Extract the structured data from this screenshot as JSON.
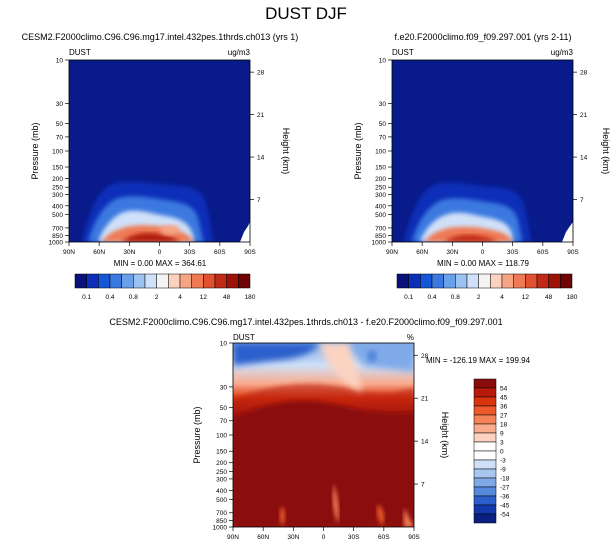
{
  "title": "DUST DJF",
  "chart_data": [
    {
      "type": "heatmap",
      "title": "CESM2.F2000climo.C96.C96.mg17.intel.432pes.1thrds.ch013 (yrs 1)",
      "left_string": "DUST",
      "right_string": "ug/m3",
      "ylabel": "Pressure (mb)",
      "ylabel_right": "Height (km)",
      "x_ticks": [
        "90N",
        "60N",
        "30N",
        "0",
        "30S",
        "60S",
        "90S"
      ],
      "y_ticks": [
        "10",
        "30",
        "50",
        "70",
        "100",
        "150",
        "200",
        "250",
        "300",
        "400",
        "500",
        "700",
        "850",
        "1000"
      ],
      "y_ticks_right": [
        "28",
        "21",
        "14",
        "7"
      ],
      "stats": "MIN =   0.00  MAX = 364.61",
      "min": 0.0,
      "max": 364.61,
      "colorbar_labels": [
        "0.1",
        "0.4",
        "0.8",
        "2",
        "4",
        "12",
        "48",
        "180"
      ],
      "colorbar_colors": [
        "#08127a",
        "#0b2fb8",
        "#1556d6",
        "#3a79e0",
        "#6aa0ea",
        "#9cc2f2",
        "#cfe0f8",
        "#f4f4f4",
        "#fbd2c0",
        "#f6a584",
        "#ef7a55",
        "#e2512f",
        "#c22a18",
        "#9b1208",
        "#6e0404"
      ]
    },
    {
      "type": "heatmap",
      "title": "f.e20.F2000climo.f09_f09.297.001 (yrs 2-11)",
      "left_string": "DUST",
      "right_string": "ug/m3",
      "ylabel": "Pressure (mb)",
      "ylabel_right": "Height (km)",
      "x_ticks": [
        "90N",
        "60N",
        "30N",
        "0",
        "30S",
        "60S",
        "90S"
      ],
      "y_ticks": [
        "10",
        "30",
        "50",
        "70",
        "100",
        "150",
        "200",
        "250",
        "300",
        "400",
        "500",
        "700",
        "850",
        "1000"
      ],
      "y_ticks_right": [
        "28",
        "21",
        "14",
        "7"
      ],
      "stats": "MIN =   0.00  MAX = 118.79",
      "min": 0.0,
      "max": 118.79,
      "colorbar_labels": [
        "0.1",
        "0.4",
        "0.8",
        "2",
        "4",
        "12",
        "48",
        "180"
      ],
      "colorbar_colors": [
        "#08127a",
        "#0b2fb8",
        "#1556d6",
        "#3a79e0",
        "#6aa0ea",
        "#9cc2f2",
        "#cfe0f8",
        "#f4f4f4",
        "#fbd2c0",
        "#f6a584",
        "#ef7a55",
        "#e2512f",
        "#c22a18",
        "#9b1208",
        "#6e0404"
      ]
    },
    {
      "type": "heatmap",
      "title": "CESM2.F2000climo.C96.C96.mg17.intel.432pes.1thrds.ch013 - f.e20.F2000climo.f09_f09.297.001",
      "left_string": "DUST",
      "right_string": "%",
      "ylabel": "Pressure (mb)",
      "ylabel_right": "Height (km)",
      "x_ticks": [
        "90N",
        "60N",
        "30N",
        "0",
        "30S",
        "60S",
        "90S"
      ],
      "y_ticks": [
        "10",
        "30",
        "50",
        "70",
        "100",
        "150",
        "200",
        "250",
        "300",
        "400",
        "500",
        "700",
        "850",
        "1000"
      ],
      "y_ticks_right": [
        "28",
        "21",
        "14",
        "7"
      ],
      "stats": "MIN = -126.19  MAX = 199.94",
      "min": -126.19,
      "max": 199.94,
      "colorbar_labels": [
        "54",
        "45",
        "36",
        "27",
        "18",
        "9",
        "3",
        "0",
        "-3",
        "-9",
        "-18",
        "-27",
        "-36",
        "-45",
        "-54"
      ],
      "colorbar_colors": [
        "#8b0c0c",
        "#b81a0c",
        "#d8340f",
        "#ec5a2a",
        "#f5835a",
        "#f9ab8e",
        "#fcd3c1",
        "#ffffff",
        "#ffffff",
        "#cfe0f7",
        "#a9c6f0",
        "#7fa9e8",
        "#5589dc",
        "#2c5fcc",
        "#1438ac",
        "#0a1f80"
      ]
    }
  ]
}
